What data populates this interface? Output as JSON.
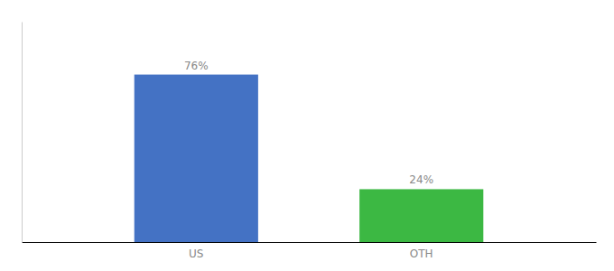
{
  "chart_data": {
    "type": "bar",
    "categories": [
      "US",
      "OTH"
    ],
    "values": [
      76,
      24
    ],
    "colors": [
      "#4472c4",
      "#3cb843"
    ],
    "value_labels": [
      "76%",
      "24%"
    ],
    "data_labels": true,
    "ylim": [
      0,
      100
    ],
    "tick_labels": "x",
    "grid": false
  }
}
